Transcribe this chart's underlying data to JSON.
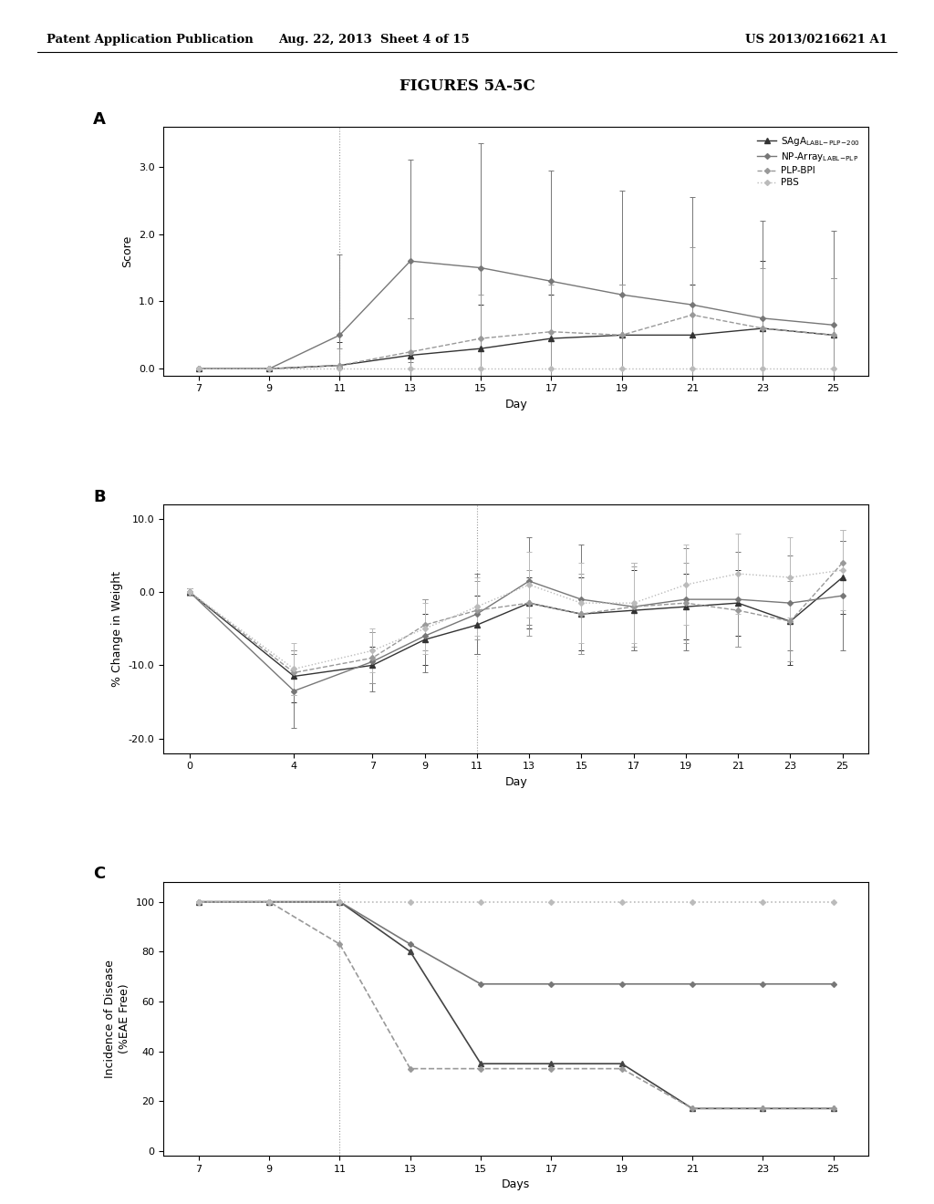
{
  "title": "FIGURES 5A-5C",
  "header_left": "Patent Application Publication",
  "header_center": "Aug. 22, 2013  Sheet 4 of 15",
  "header_right": "US 2013/0216621 A1",
  "panel_A": {
    "label": "A",
    "xlabel": "Day",
    "ylabel": "Score",
    "xlim": [
      6,
      26
    ],
    "ylim": [
      -0.1,
      3.6
    ],
    "yticks": [
      0.0,
      1.0,
      2.0,
      3.0
    ],
    "yticklabels": [
      "0.0",
      "1.0",
      "2.0",
      "3.0"
    ],
    "xticks": [
      7,
      9,
      11,
      13,
      15,
      17,
      19,
      21,
      23,
      25
    ],
    "vline": 11,
    "series": {
      "SAgA": {
        "days": [
          7,
          9,
          11,
          13,
          15,
          17,
          19,
          21,
          23,
          25
        ],
        "mean": [
          0.0,
          0.0,
          0.05,
          0.2,
          0.3,
          0.45,
          0.5,
          0.5,
          0.6,
          0.5
        ],
        "err": [
          0.0,
          0.0,
          0.35,
          0.55,
          0.65,
          0.65,
          0.75,
          0.75,
          1.0,
          0.85
        ],
        "color": "#333333",
        "marker": "^",
        "linestyle": "-",
        "markersize": 4,
        "linewidth": 1.0
      },
      "NP_Array": {
        "days": [
          7,
          9,
          11,
          13,
          15,
          17,
          19,
          21,
          23,
          25
        ],
        "mean": [
          0.0,
          0.0,
          0.5,
          1.6,
          1.5,
          1.3,
          1.1,
          0.95,
          0.75,
          0.65
        ],
        "err": [
          0.0,
          0.0,
          1.2,
          1.5,
          1.85,
          1.65,
          1.55,
          1.6,
          1.45,
          1.4
        ],
        "color": "#777777",
        "marker": "D",
        "linestyle": "-",
        "markersize": 3,
        "linewidth": 1.0
      },
      "PLP_BPI": {
        "days": [
          7,
          9,
          11,
          13,
          15,
          17,
          19,
          21,
          23,
          25
        ],
        "mean": [
          0.0,
          0.0,
          0.05,
          0.25,
          0.45,
          0.55,
          0.5,
          0.8,
          0.6,
          0.5
        ],
        "err": [
          0.0,
          0.0,
          0.25,
          0.5,
          0.65,
          0.7,
          0.75,
          1.0,
          0.9,
          0.85
        ],
        "color": "#999999",
        "marker": "D",
        "linestyle": "--",
        "markersize": 3,
        "linewidth": 1.0
      },
      "PBS": {
        "days": [
          7,
          9,
          11,
          13,
          15,
          17,
          19,
          21,
          23,
          25
        ],
        "mean": [
          0.0,
          0.0,
          0.0,
          0.0,
          0.0,
          0.0,
          0.0,
          0.0,
          0.0,
          0.0
        ],
        "err": [
          0.0,
          0.0,
          0.0,
          0.0,
          0.0,
          0.0,
          0.0,
          0.0,
          0.0,
          0.0
        ],
        "color": "#bbbbbb",
        "marker": "D",
        "linestyle": ":",
        "markersize": 3,
        "linewidth": 1.0
      }
    },
    "legend_labels": [
      "SAgA",
      "NP-Array",
      "PLP-BPI",
      "PBS"
    ],
    "legend_subscripts": [
      "[LABL-PLP-200]",
      "[LABL-PLP]",
      "",
      ""
    ]
  },
  "panel_B": {
    "label": "B",
    "xlabel": "Day",
    "ylabel": "% Change in Weight",
    "xlim": [
      -1,
      26
    ],
    "ylim": [
      -22,
      12
    ],
    "yticks": [
      -20.0,
      -10.0,
      0.0,
      10.0
    ],
    "yticklabels": [
      "-20.0",
      "-10.0",
      "0.0",
      "10.0"
    ],
    "xticks": [
      0,
      4,
      7,
      9,
      11,
      13,
      15,
      17,
      19,
      21,
      23,
      25
    ],
    "vline": 11,
    "series": {
      "SAgA": {
        "days": [
          0,
          4,
          7,
          9,
          11,
          13,
          15,
          17,
          19,
          21,
          23,
          25
        ],
        "mean": [
          0.0,
          -11.5,
          -10.0,
          -6.5,
          -4.5,
          -1.5,
          -3.0,
          -2.5,
          -2.0,
          -1.5,
          -4.0,
          2.0
        ],
        "err": [
          0.5,
          3.5,
          2.5,
          3.5,
          4.0,
          3.5,
          5.0,
          5.5,
          4.5,
          4.5,
          6.0,
          5.0
        ],
        "color": "#333333",
        "marker": "^",
        "linestyle": "-",
        "markersize": 4,
        "linewidth": 1.0
      },
      "NP_Array": {
        "days": [
          0,
          4,
          7,
          9,
          11,
          13,
          15,
          17,
          19,
          21,
          23,
          25
        ],
        "mean": [
          0.0,
          -13.5,
          -9.5,
          -6.0,
          -3.0,
          1.5,
          -1.0,
          -2.0,
          -1.0,
          -1.0,
          -1.5,
          -0.5
        ],
        "err": [
          0.5,
          5.0,
          4.0,
          5.0,
          5.5,
          6.0,
          7.5,
          6.0,
          7.0,
          6.5,
          6.5,
          7.5
        ],
        "color": "#777777",
        "marker": "D",
        "linestyle": "-",
        "markersize": 3,
        "linewidth": 1.0
      },
      "PLP_BPI": {
        "days": [
          0,
          4,
          7,
          9,
          11,
          13,
          15,
          17,
          19,
          21,
          23,
          25
        ],
        "mean": [
          0.0,
          -11.0,
          -9.0,
          -4.5,
          -2.5,
          -1.5,
          -3.0,
          -2.0,
          -1.5,
          -2.5,
          -4.0,
          4.0
        ],
        "err": [
          0.5,
          3.0,
          3.5,
          3.5,
          4.0,
          4.5,
          5.5,
          5.5,
          5.5,
          5.0,
          5.5,
          4.5
        ],
        "color": "#999999",
        "marker": "D",
        "linestyle": "--",
        "markersize": 3,
        "linewidth": 1.0
      },
      "PBS": {
        "days": [
          0,
          4,
          7,
          9,
          11,
          13,
          15,
          17,
          19,
          21,
          23,
          25
        ],
        "mean": [
          0.0,
          -10.5,
          -8.0,
          -5.0,
          -2.0,
          1.0,
          -1.5,
          -1.5,
          1.0,
          2.5,
          2.0,
          3.0
        ],
        "err": [
          0.5,
          3.5,
          3.0,
          3.5,
          4.0,
          4.5,
          5.5,
          5.5,
          5.5,
          5.5,
          5.5,
          5.5
        ],
        "color": "#bbbbbb",
        "marker": "D",
        "linestyle": ":",
        "markersize": 3,
        "linewidth": 1.0
      }
    }
  },
  "panel_C": {
    "label": "C",
    "xlabel": "Days",
    "ylabel": "Incidence of Disease\n(%EAE Free)",
    "xlim": [
      6,
      26
    ],
    "ylim": [
      -2,
      108
    ],
    "yticks": [
      0,
      20,
      40,
      60,
      80,
      100
    ],
    "yticklabels": [
      "0",
      "20",
      "40",
      "60",
      "80",
      "100"
    ],
    "xticks": [
      7,
      9,
      11,
      13,
      15,
      17,
      19,
      21,
      23,
      25
    ],
    "vline": 11,
    "series": {
      "SAgA": {
        "days": [
          7,
          9,
          11,
          13,
          15,
          17,
          19,
          21,
          23,
          25
        ],
        "values": [
          100,
          100,
          100,
          80,
          35,
          35,
          35,
          17,
          17,
          17
        ],
        "color": "#444444",
        "marker": "^",
        "linestyle": "-",
        "markersize": 4,
        "linewidth": 1.2
      },
      "NP_Array": {
        "days": [
          7,
          9,
          11,
          13,
          15,
          17,
          19,
          21,
          23,
          25
        ],
        "values": [
          100,
          100,
          100,
          83,
          67,
          67,
          67,
          67,
          67,
          67
        ],
        "color": "#777777",
        "marker": "D",
        "linestyle": "-",
        "markersize": 3,
        "linewidth": 1.2
      },
      "PLP_BPI": {
        "days": [
          7,
          9,
          11,
          13,
          15,
          17,
          19,
          21,
          23,
          25
        ],
        "values": [
          100,
          100,
          83,
          33,
          33,
          33,
          33,
          17,
          17,
          17
        ],
        "color": "#999999",
        "marker": "D",
        "linestyle": "--",
        "markersize": 3,
        "linewidth": 1.2
      },
      "PBS": {
        "days": [
          7,
          9,
          11,
          13,
          15,
          17,
          19,
          21,
          23,
          25
        ],
        "values": [
          100,
          100,
          100,
          100,
          100,
          100,
          100,
          100,
          100,
          100
        ],
        "color": "#bbbbbb",
        "marker": "D",
        "linestyle": ":",
        "markersize": 3,
        "linewidth": 1.2
      }
    }
  }
}
